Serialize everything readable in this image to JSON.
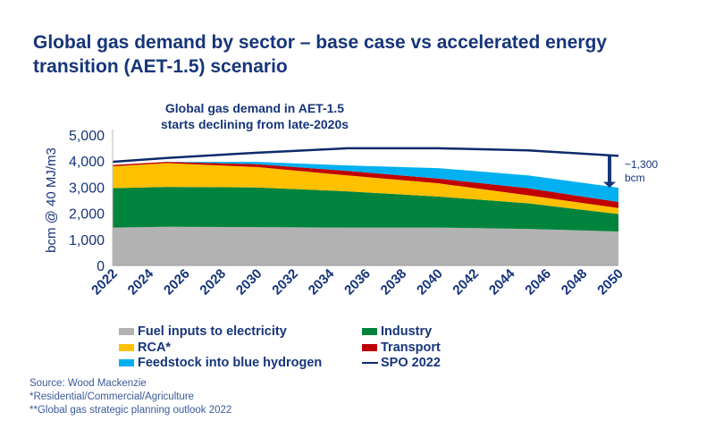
{
  "title": "Global gas demand by sector – base case vs accelerated energy transition (AET-1.5) scenario",
  "annotation": {
    "line1": "Global gas demand in AET-1.5",
    "line2": "starts declining from late-2020s",
    "arrow_label1": "~1,300",
    "arrow_label2": "bcm"
  },
  "notes": [
    "Source: Wood Mackenzie",
    "*Residential/Commercial/Agriculture",
    "**Global gas strategic planning outlook 2022"
  ],
  "chart_data": {
    "type": "area",
    "stacked": true,
    "ylabel": "bcm @ 40 MJ/m3",
    "ylim": [
      0,
      5000
    ],
    "yticks": [
      "0",
      "1,000",
      "2,000",
      "3,000",
      "4,000",
      "5,000"
    ],
    "xlim": [
      2022,
      2050
    ],
    "xticks": [
      "2022",
      "2024",
      "2026",
      "2028",
      "2030",
      "2032",
      "2034",
      "2036",
      "2038",
      "2040",
      "2042",
      "2044",
      "2046",
      "2048",
      "2050"
    ],
    "x": [
      2022,
      2025,
      2030,
      2035,
      2040,
      2045,
      2050
    ],
    "series": [
      {
        "name": "Fuel inputs to electricity",
        "color": "#b3b3b3",
        "values": [
          1450,
          1480,
          1470,
          1450,
          1450,
          1400,
          1300
        ]
      },
      {
        "name": "Industry",
        "color": "#00843d",
        "values": [
          1510,
          1530,
          1520,
          1390,
          1190,
          980,
          670
        ]
      },
      {
        "name": "RCA*",
        "color": "#ffc000",
        "values": [
          840,
          910,
          780,
          610,
          510,
          310,
          230
        ]
      },
      {
        "name": "Transport",
        "color": "#c00000",
        "values": [
          50,
          50,
          110,
          170,
          180,
          270,
          230
        ]
      },
      {
        "name": "Feedstock into blue hydrogen",
        "color": "#00b0f0",
        "values": [
          0,
          0,
          90,
          210,
          400,
          490,
          550
        ]
      }
    ],
    "line": {
      "name": "SPO 2022",
      "color": "#0d2b6b",
      "values": [
        3970,
        4120,
        4320,
        4490,
        4490,
        4410,
        4200
      ]
    },
    "legend": "bottom"
  }
}
